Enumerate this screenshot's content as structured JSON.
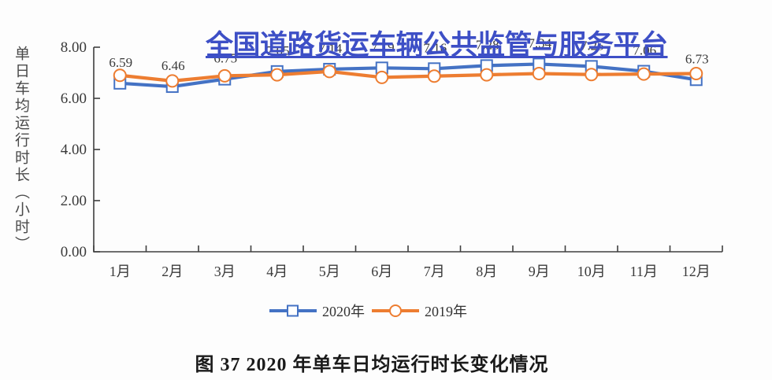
{
  "watermark": {
    "text": "全国道路货运车辆公共监管与服务平台",
    "color": "#3D4FC6"
  },
  "caption": "图 37 2020 年单车日均运行时长变化情况",
  "chart_data": {
    "type": "line",
    "title": "",
    "xlabel": "",
    "ylabel": "单日车均运行时长（小时）",
    "categories": [
      "1月",
      "2月",
      "3月",
      "4月",
      "5月",
      "6月",
      "7月",
      "8月",
      "9月",
      "10月",
      "11月",
      "12月"
    ],
    "yticks": [
      "8.00",
      "6.00",
      "4.00",
      "2.00",
      "0.00"
    ],
    "ylim": [
      0,
      8
    ],
    "grid": false,
    "legend_position": "bottom",
    "axis_color": "#3f3f3f",
    "label_color": "#3a3a3a",
    "series": [
      {
        "name": "2020年",
        "color": "#4472C4",
        "marker": "square",
        "values": [
          6.59,
          6.46,
          6.75,
          7.05,
          7.14,
          7.19,
          7.16,
          7.28,
          7.34,
          7.25,
          7.06,
          6.73
        ],
        "labels": [
          "6.59",
          "6.46",
          "6.75",
          "7.05",
          "7.14",
          "7.19",
          "7.16",
          "7.28",
          "7.34",
          "7.25",
          "7.06",
          "6.73"
        ]
      },
      {
        "name": "2019年",
        "color": "#ED7D31",
        "marker": "circle",
        "values": [
          6.9,
          6.68,
          6.88,
          6.92,
          7.05,
          6.82,
          6.87,
          6.92,
          6.97,
          6.93,
          6.95,
          6.97
        ]
      }
    ]
  }
}
